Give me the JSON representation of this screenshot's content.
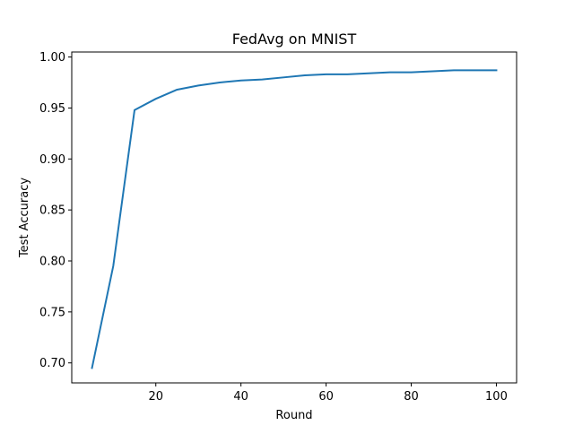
{
  "chart_data": {
    "type": "line",
    "title": "FedAvg on MNIST",
    "xlabel": "Round",
    "ylabel": "Test Accuracy",
    "xlim": [
      0.25,
      104.75
    ],
    "ylim": [
      0.6804,
      1.0049
    ],
    "xticks": [
      20,
      40,
      60,
      80,
      100
    ],
    "yticks": [
      0.7,
      0.75,
      0.8,
      0.85,
      0.9,
      0.95,
      1.0
    ],
    "xtick_labels": [
      "20",
      "40",
      "60",
      "80",
      "100"
    ],
    "ytick_labels": [
      "0.70",
      "0.75",
      "0.80",
      "0.85",
      "0.90",
      "0.95",
      "1.00"
    ],
    "grid": false,
    "series": [
      {
        "color": "#1f77b4",
        "x": [
          5,
          10,
          15,
          20,
          25,
          30,
          35,
          40,
          45,
          50,
          55,
          60,
          65,
          70,
          75,
          80,
          85,
          90,
          95,
          100
        ],
        "y": [
          0.695,
          0.795,
          0.948,
          0.959,
          0.968,
          0.972,
          0.975,
          0.977,
          0.978,
          0.98,
          0.982,
          0.983,
          0.983,
          0.984,
          0.985,
          0.985,
          0.986,
          0.987,
          0.987,
          0.987
        ]
      }
    ]
  }
}
